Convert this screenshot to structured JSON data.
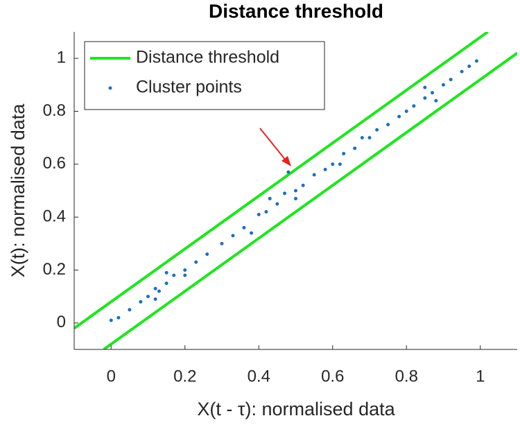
{
  "chart_data": {
    "type": "scatter",
    "title": "Distance threshold",
    "xlabel": "X(t - τ): normalised data",
    "ylabel": "X(t): normalised data",
    "xlim": [
      -0.1,
      1.1
    ],
    "ylim": [
      -0.1,
      1.1
    ],
    "xticks": [
      0,
      0.2,
      0.4,
      0.6,
      0.8,
      1
    ],
    "yticks": [
      0,
      0.2,
      0.4,
      0.6,
      0.8,
      1
    ],
    "grid": false,
    "legend": "northwest",
    "series": [
      {
        "name": "Distance threshold",
        "color": "#1ee61e",
        "type": "line",
        "x": [
          -0.1,
          1.02,
          null,
          -0.02,
          1.1
        ],
        "y": [
          -0.02,
          1.1,
          null,
          -0.1,
          1.02
        ]
      },
      {
        "name": "Cluster points",
        "color": "#1f6fbd",
        "type": "scatter",
        "x": [
          0,
          0.02,
          0.05,
          0.08,
          0.1,
          0.12,
          0.13,
          0.15,
          0.17,
          0.2,
          0.23,
          0.26,
          0.3,
          0.33,
          0.36,
          0.4,
          0.42,
          0.45,
          0.47,
          0.5,
          0.52,
          0.55,
          0.58,
          0.6,
          0.63,
          0.66,
          0.7,
          0.72,
          0.75,
          0.78,
          0.8,
          0.82,
          0.85,
          0.87,
          0.9,
          0.92,
          0.95,
          0.97,
          0.99,
          0.12,
          0.15,
          0.43,
          0.48,
          0.5,
          0.62,
          0.85,
          0.88,
          0.2,
          0.38,
          0.68
        ],
        "y": [
          0.01,
          0.02,
          0.05,
          0.08,
          0.1,
          0.13,
          0.12,
          0.15,
          0.18,
          0.2,
          0.23,
          0.26,
          0.3,
          0.33,
          0.36,
          0.41,
          0.42,
          0.45,
          0.49,
          0.5,
          0.52,
          0.56,
          0.58,
          0.6,
          0.64,
          0.66,
          0.7,
          0.73,
          0.75,
          0.78,
          0.8,
          0.82,
          0.85,
          0.87,
          0.9,
          0.92,
          0.95,
          0.97,
          0.99,
          0.09,
          0.19,
          0.47,
          0.57,
          0.47,
          0.6,
          0.89,
          0.84,
          0.18,
          0.34,
          0.7
        ]
      }
    ]
  }
}
